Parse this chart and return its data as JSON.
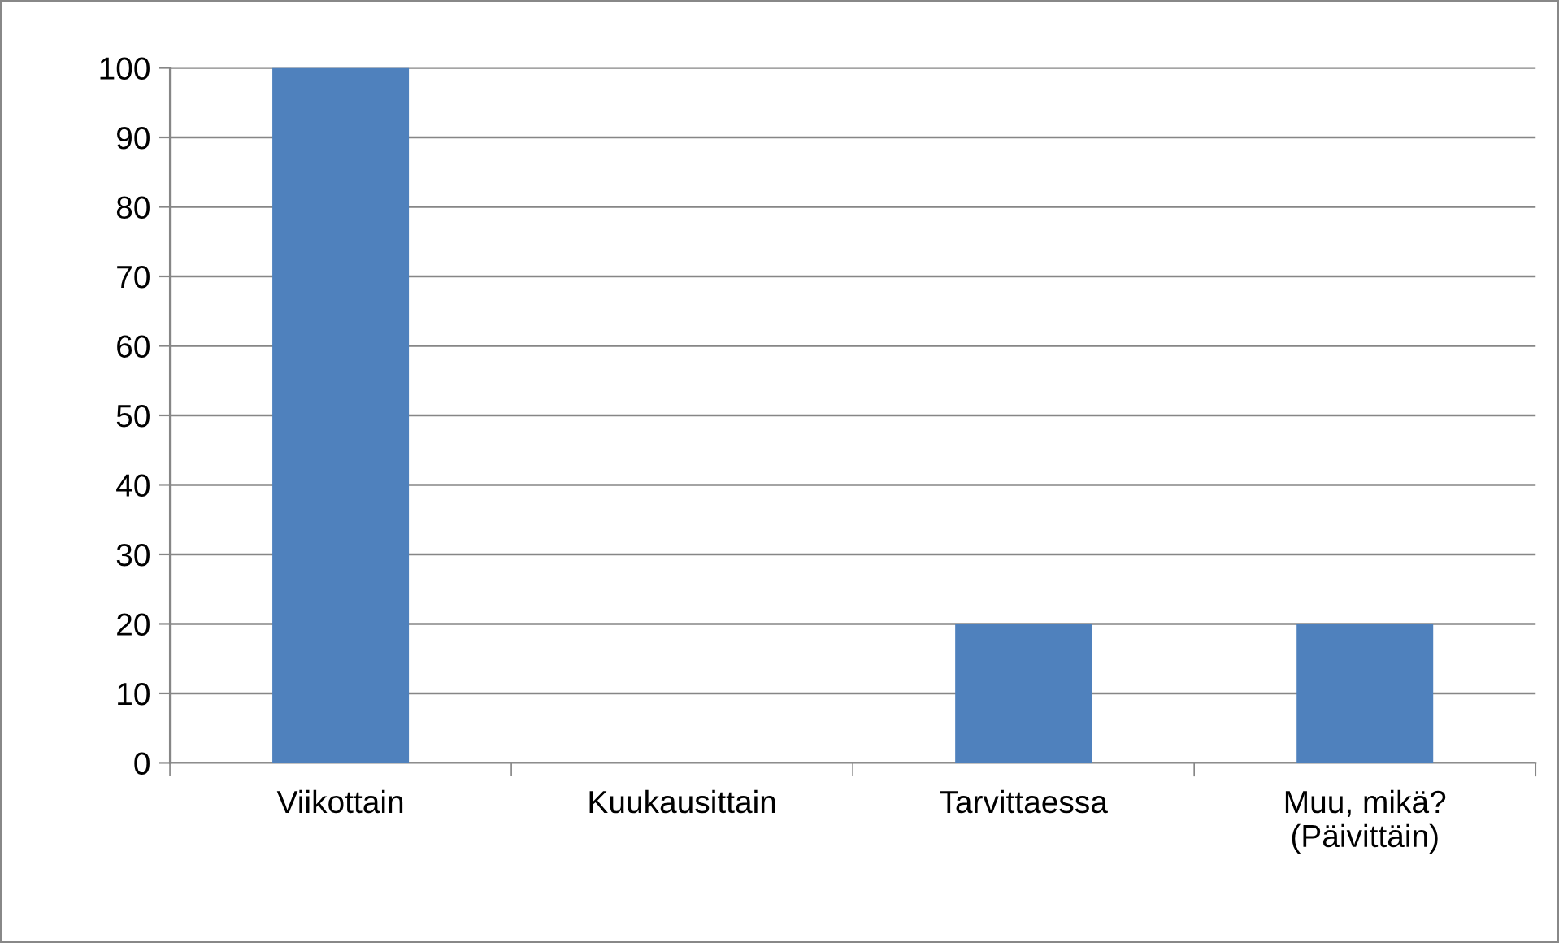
{
  "chart_data": {
    "type": "bar",
    "categories": [
      "Viikottain",
      "Kuukausittain",
      "Tarvittaessa",
      "Muu, mikä?\n(Päivittäin)"
    ],
    "values": [
      100,
      0,
      20,
      20
    ],
    "color": "#4f81bd",
    "ylim": [
      0,
      100
    ],
    "yticks": [
      0,
      10,
      20,
      30,
      40,
      50,
      60,
      70,
      80,
      90,
      100
    ],
    "grid": "y",
    "legend": false
  }
}
